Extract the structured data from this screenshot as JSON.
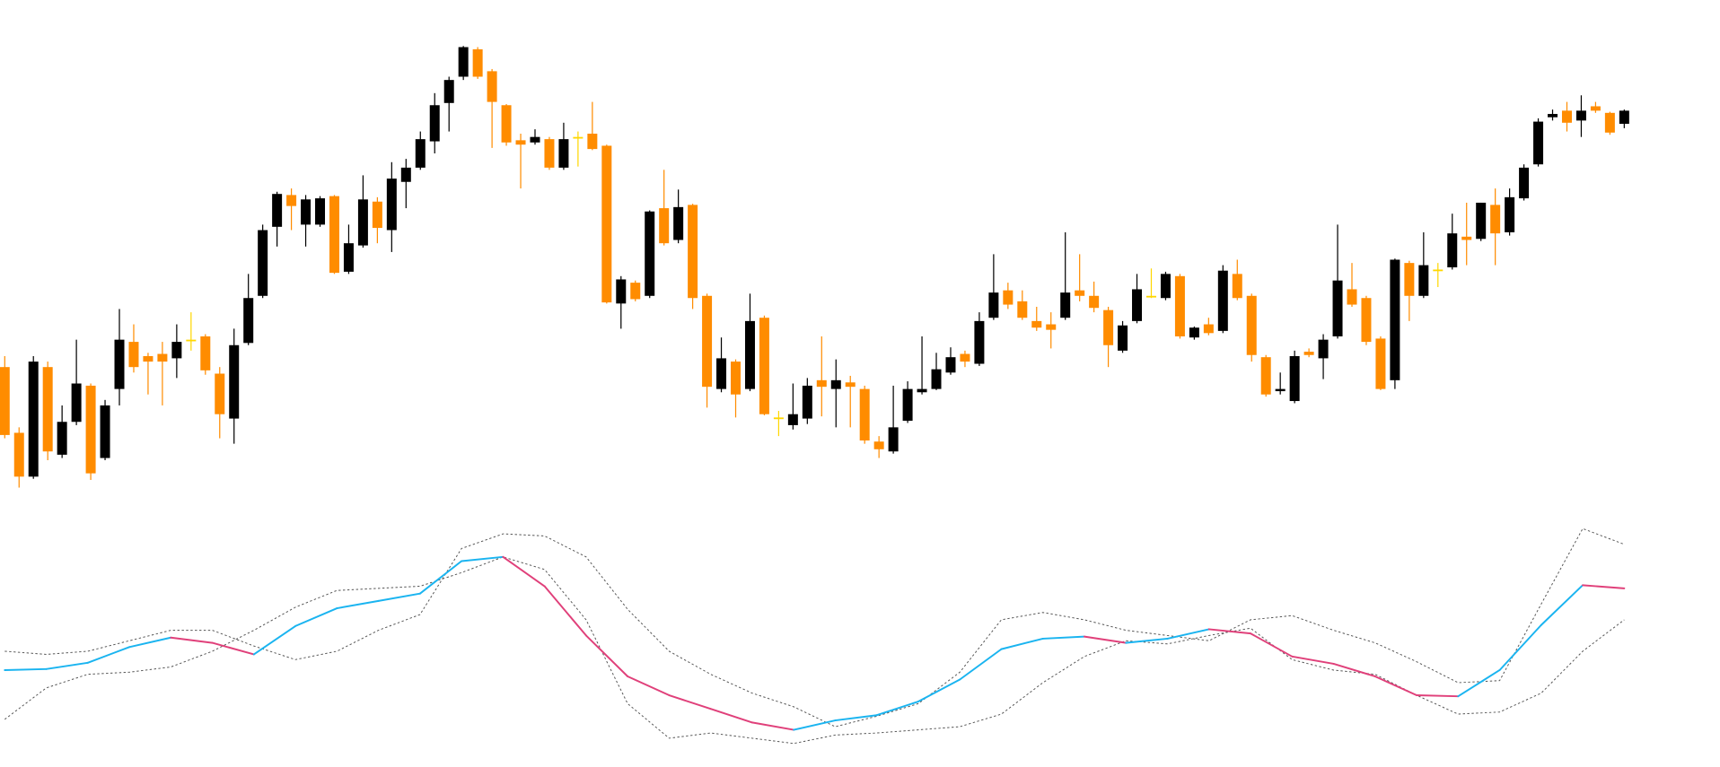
{
  "chart_data": [
    {
      "type": "candlestick",
      "up_color": "#000000",
      "down_color": "#ff8c00",
      "doji_color": "#ffd700",
      "ylim": [
        0,
        460
      ],
      "open": [
        125,
        65,
        25,
        125,
        45,
        75,
        108,
        42,
        105,
        148,
        135,
        137,
        133,
        150,
        153,
        119,
        78,
        147,
        190,
        253,
        282,
        255,
        255,
        281,
        212,
        236,
        276,
        250,
        294,
        307,
        331,
        366,
        390,
        415,
        395,
        364,
        332,
        330,
        333,
        307,
        335,
        338,
        327,
        183,
        202,
        190,
        270,
        241,
        273,
        190,
        105,
        130,
        105,
        170,
        79,
        72,
        78,
        113,
        105,
        111,
        105,
        57,
        48,
        76,
        102,
        105,
        120,
        137,
        128,
        170,
        195,
        185,
        167,
        164,
        170,
        195,
        190,
        177,
        140,
        167,
        190,
        188,
        208,
        152,
        164,
        158,
        210,
        190,
        134,
        103,
        94,
        139,
        133,
        153,
        196,
        188,
        151,
        113,
        220,
        190,
        214,
        216,
        244,
        242,
        273,
        248,
        279,
        310,
        353,
        359,
        350,
        363,
        357,
        347
      ],
      "high": [
        135,
        70,
        135,
        130,
        90,
        150,
        110,
        95,
        178,
        164,
        138,
        148,
        164,
        175,
        155,
        125,
        160,
        210,
        255,
        285,
        288,
        282,
        281,
        282,
        255,
        300,
        280,
        312,
        315,
        340,
        375,
        390,
        418,
        417,
        397,
        365,
        338,
        342,
        335,
        348,
        340,
        367,
        328,
        208,
        204,
        268,
        305,
        287,
        274,
        192,
        152,
        132,
        192,
        172,
        85,
        110,
        115,
        153,
        132,
        117,
        108,
        62,
        108,
        112,
        153,
        138,
        143,
        140,
        175,
        228,
        202,
        195,
        180,
        175,
        248,
        228,
        203,
        180,
        167,
        210,
        215,
        212,
        210,
        162,
        170,
        218,
        223,
        192,
        136,
        120,
        140,
        142,
        155,
        255,
        220,
        190,
        153,
        224,
        222,
        248,
        220,
        265,
        275,
        275,
        288,
        288,
        310,
        352,
        360,
        367,
        373,
        367,
        358,
        360
      ],
      "low": [
        60,
        15,
        23,
        40,
        42,
        72,
        22,
        40,
        90,
        120,
        100,
        90,
        115,
        140,
        118,
        60,
        55,
        145,
        188,
        235,
        250,
        235,
        253,
        210,
        210,
        234,
        238,
        230,
        270,
        305,
        320,
        340,
        387,
        388,
        325,
        327,
        288,
        328,
        305,
        305,
        308,
        323,
        183,
        160,
        185,
        188,
        236,
        238,
        178,
        88,
        102,
        79,
        103,
        81,
        62,
        68,
        73,
        80,
        70,
        70,
        55,
        42,
        46,
        74,
        100,
        104,
        118,
        125,
        126,
        168,
        178,
        168,
        158,
        142,
        168,
        185,
        175,
        125,
        138,
        165,
        188,
        186,
        151,
        150,
        154,
        156,
        186,
        130,
        98,
        100,
        92,
        134,
        114,
        151,
        180,
        145,
        104,
        105,
        167,
        188,
        198,
        214,
        218,
        240,
        218,
        245,
        277,
        308,
        350,
        340,
        335,
        357,
        337,
        343
      ],
      "close": [
        63,
        25,
        130,
        48,
        75,
        110,
        28,
        90,
        150,
        125,
        130,
        130,
        148,
        150,
        122,
        82,
        145,
        188,
        250,
        283,
        272,
        278,
        279,
        211,
        238,
        278,
        252,
        297,
        307,
        333,
        364,
        387,
        417,
        390,
        367,
        330,
        328,
        335,
        307,
        333,
        335,
        324,
        184,
        205,
        187,
        267,
        238,
        271,
        188,
        107,
        133,
        100,
        167,
        82,
        79,
        82,
        108,
        107,
        113,
        107,
        58,
        50,
        70,
        105,
        105,
        123,
        134,
        130,
        167,
        193,
        182,
        170,
        161,
        159,
        193,
        190,
        179,
        145,
        163,
        196,
        190,
        210,
        153,
        161,
        156,
        213,
        188,
        136,
        100,
        105,
        135,
        136,
        150,
        204,
        182,
        148,
        105,
        223,
        190,
        218,
        214,
        247,
        241,
        275,
        247,
        280,
        307,
        349,
        356,
        348,
        359,
        359,
        339,
        359
      ]
    },
    {
      "type": "line",
      "ylim": [
        0,
        230
      ],
      "series": [
        {
          "color": "#555555",
          "style": "dotted",
          "values": [
            100,
            97,
            100,
            110,
            120,
            120,
            105,
            92,
            100,
            120,
            135,
            198,
            212,
            210,
            190,
            140,
            100,
            78,
            60,
            47,
            28,
            38,
            50,
            80,
            130,
            137,
            130,
            120,
            115,
            110,
            130,
            134,
            120,
            108,
            90,
            70,
            72,
            145,
            217,
            202
          ]
        },
        {
          "color": "#555555",
          "style": "dotted",
          "values": [
            35,
            65,
            78,
            80,
            85,
            100,
            120,
            142,
            158,
            160,
            162,
            175,
            190,
            178,
            130,
            50,
            17,
            22,
            17,
            12,
            20,
            22,
            25,
            28,
            40,
            70,
            95,
            110,
            107,
            115,
            122,
            92,
            82,
            78,
            58,
            40,
            42,
            60,
            100,
            130
          ]
        },
        {
          "color": "#1ab4f0",
          "down_color": "#e0407a",
          "style": "solid",
          "values": [
            82,
            83,
            89,
            104,
            113,
            108,
            97,
            124,
            141,
            148,
            155,
            186,
            190,
            162,
            115,
            76,
            58,
            45,
            32,
            25,
            34,
            39,
            52,
            73,
            102,
            112,
            114,
            108,
            112,
            121,
            117,
            95,
            88,
            76,
            58,
            57,
            82,
            125,
            163,
            160
          ]
        }
      ]
    }
  ]
}
